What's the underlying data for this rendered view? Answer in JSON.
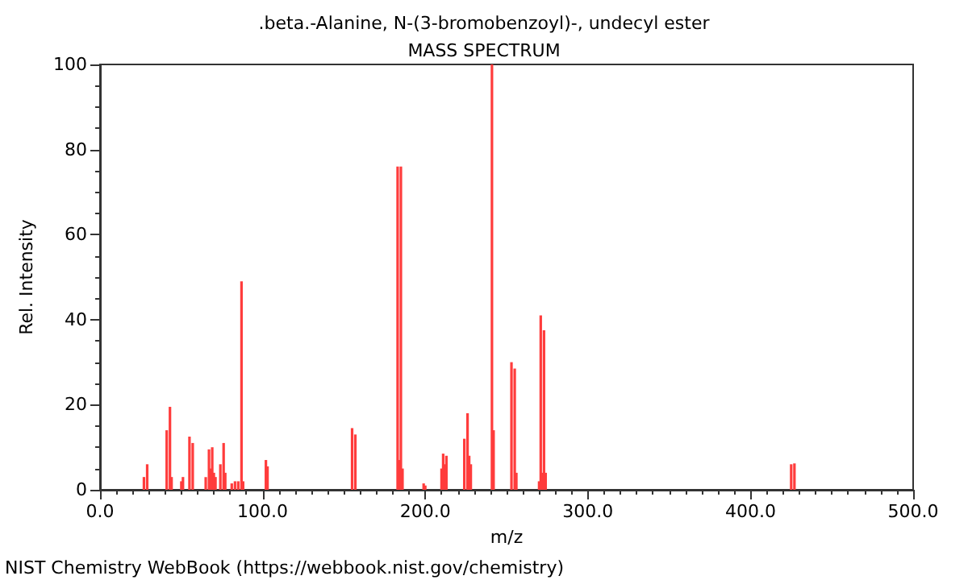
{
  "chart_data": {
    "type": "bar",
    "title": ".beta.-Alanine, N-(3-bromobenzoyl)-, undecyl ester",
    "subtitle": "MASS SPECTRUM",
    "xlabel": "m/z",
    "ylabel": "Rel. Intensity",
    "x": [
      27,
      29,
      41,
      43,
      44,
      50,
      51,
      55,
      57,
      65,
      67,
      68,
      69,
      70,
      71,
      74,
      76,
      77,
      81,
      83,
      85,
      87,
      88,
      102,
      103,
      155,
      157,
      183,
      184,
      185,
      186,
      199,
      200,
      210,
      211,
      212,
      213,
      224,
      226,
      227,
      228,
      241,
      242,
      253,
      255,
      256,
      270,
      271,
      272,
      273,
      274,
      425,
      427
    ],
    "series": [
      {
        "color": "#ff3c3c",
        "values": [
          3,
          6,
          14,
          19.5,
          3,
          2,
          3,
          12.5,
          11,
          3,
          9.5,
          5,
          10,
          4,
          3,
          6,
          11,
          4,
          1.5,
          2,
          2,
          49,
          2,
          7,
          5.5,
          14.5,
          13,
          76,
          7,
          76,
          5,
          1.5,
          1,
          5,
          8.5,
          6,
          8,
          12,
          18,
          8,
          6,
          100,
          14,
          30,
          28.5,
          4,
          2,
          41,
          4,
          37.5,
          4,
          6,
          6.2
        ]
      }
    ],
    "xlim": [
      0,
      500
    ],
    "xticks": [
      {
        "value": 0,
        "label": "0.0"
      },
      {
        "value": 100,
        "label": "100.0"
      },
      {
        "value": 200,
        "label": "200.0"
      },
      {
        "value": 300,
        "label": "300.0"
      },
      {
        "value": 400,
        "label": "400.0"
      },
      {
        "value": 500,
        "label": "500.0"
      }
    ],
    "ylim": [
      0,
      100
    ],
    "yticks": [
      0,
      20,
      40,
      60,
      80,
      100
    ],
    "grid": false,
    "annotations": [
      "NIST Chemistry WebBook (https://webbook.nist.gov/chemistry)"
    ]
  }
}
